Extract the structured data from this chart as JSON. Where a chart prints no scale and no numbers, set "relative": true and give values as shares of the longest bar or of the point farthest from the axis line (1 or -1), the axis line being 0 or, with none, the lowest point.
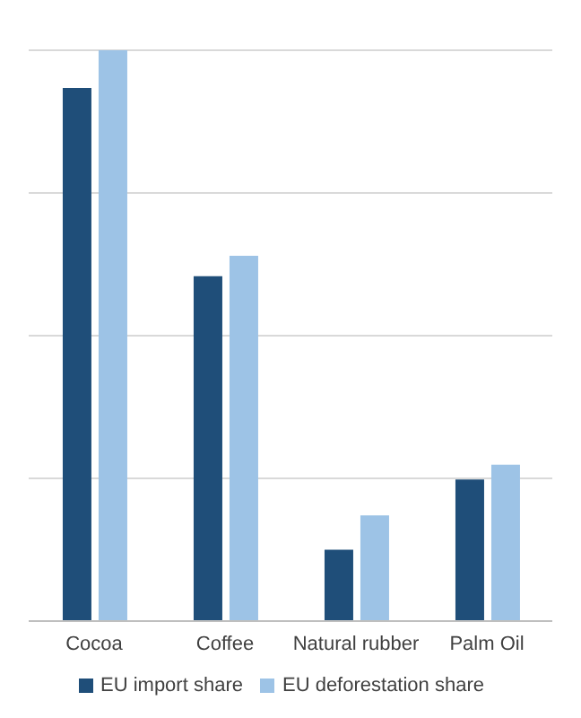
{
  "chart_data": {
    "type": "bar",
    "relative": true,
    "categories": [
      "Cocoa",
      "Coffee",
      "Natural rubber",
      "Palm Oil"
    ],
    "series": [
      {
        "name": "EU import share",
        "color": "#1f4e79",
        "values": [
          0.934,
          0.604,
          0.125,
          0.248
        ]
      },
      {
        "name": "EU deforestation share",
        "color": "#9dc3e6",
        "values": [
          1,
          0.64,
          0.185,
          0.274
        ]
      }
    ],
    "grid": "y",
    "legend": "bottom"
  }
}
